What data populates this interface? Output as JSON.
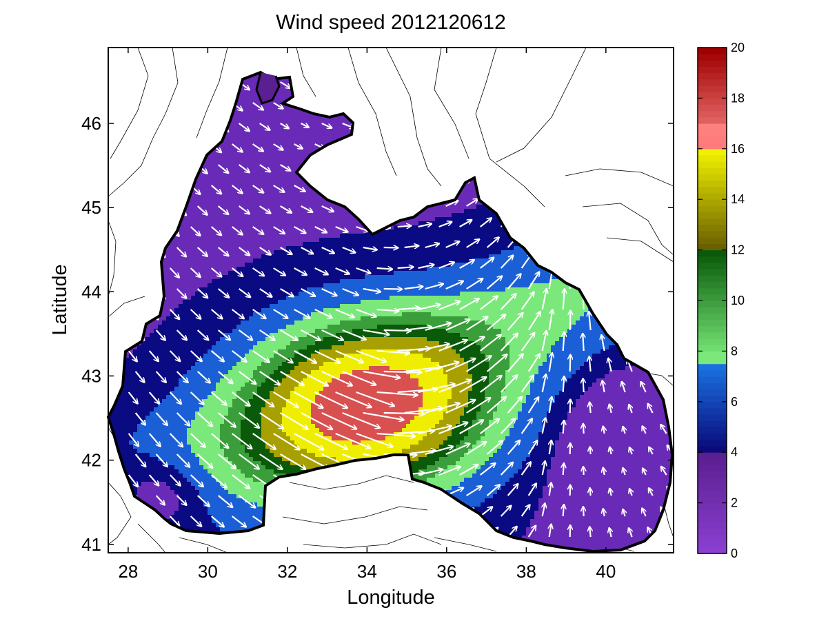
{
  "title": "Wind speed 2012120612",
  "x_axis": {
    "label": "Longitude",
    "range": [
      27.5,
      41.7
    ],
    "ticks": [
      "28",
      "30",
      "32",
      "34",
      "36",
      "38",
      "40"
    ]
  },
  "y_axis": {
    "label": "Latitude",
    "range": [
      40.9,
      46.9
    ],
    "ticks": [
      "41",
      "42",
      "43",
      "44",
      "45",
      "46"
    ]
  },
  "colorbar": {
    "range": [
      0,
      20
    ],
    "ticks": [
      "0",
      "2",
      "4",
      "6",
      "8",
      "10",
      "12",
      "14",
      "16",
      "18",
      "20"
    ],
    "palette": [
      {
        "from": 0,
        "to": 4,
        "color": "#8a3fd0",
        "color_end": "#5a1f90"
      },
      {
        "from": 4,
        "to": 7.5,
        "color": "#0a0a7a",
        "color_end": "#1a70e0"
      },
      {
        "from": 7.5,
        "to": 8,
        "color": "#7ae87a",
        "color_end": "#7ae87a"
      },
      {
        "from": 8,
        "to": 12,
        "color": "#6fdc6f",
        "color_end": "#0a5a0a"
      },
      {
        "from": 12,
        "to": 16,
        "color": "#6a6000",
        "color_end": "#f0f000"
      },
      {
        "from": 16,
        "to": 17,
        "color": "#ff7a7a",
        "color_end": "#ff8080"
      },
      {
        "from": 17,
        "to": 20,
        "color": "#e06060",
        "color_end": "#a00000"
      }
    ]
  },
  "contour_levels": [
    {
      "value": 3.5,
      "color": "#6a2ab8"
    },
    {
      "value": 4.5,
      "color": "#0a0a82"
    },
    {
      "value": 6,
      "color": "#1b5fd6"
    },
    {
      "value": 8,
      "color": "#7ae87a"
    },
    {
      "value": 10,
      "color": "#3a9e3a"
    },
    {
      "value": 11.5,
      "color": "#0a5a0a"
    },
    {
      "value": 13,
      "color": "#a8a000"
    },
    {
      "value": 15,
      "color": "#f0ee00"
    },
    {
      "value": 17.5,
      "color": "#d85050"
    }
  ],
  "wind_center": {
    "lon": 34.1,
    "lat": 42.6,
    "peak_speed": 18
  }
}
